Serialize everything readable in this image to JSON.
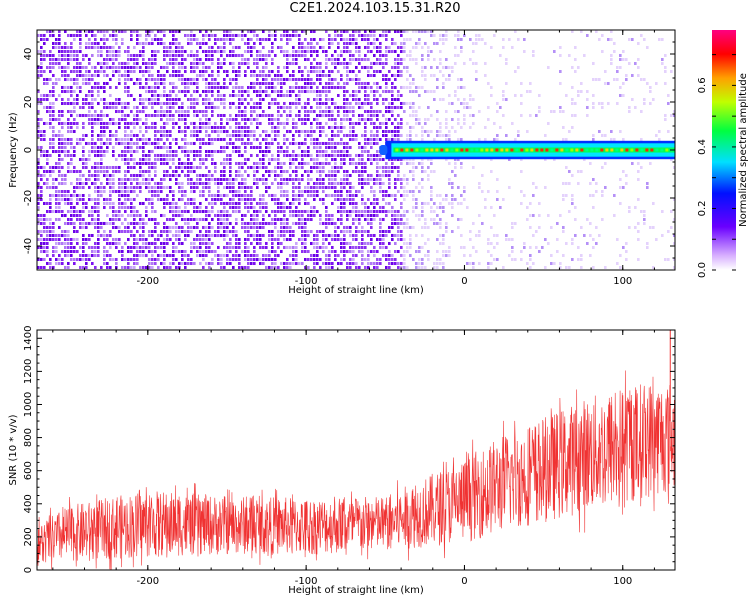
{
  "title": "C2E1.2024.103.15.31.R20",
  "colors": {
    "noise": "#7B1FE8",
    "trace": "#F03232",
    "axis": "#000000"
  },
  "chart_data": [
    {
      "type": "heatmap",
      "xlabel": "Height of straight line (km)",
      "ylabel": "Frequency (Hz)",
      "xlim": [
        -270,
        133
      ],
      "ylim": [
        -50,
        50
      ],
      "x_ticks": [
        -200,
        -100,
        0,
        100
      ],
      "y_ticks": [
        -40,
        -20,
        0,
        20,
        40
      ],
      "colorbar": {
        "label": "Normalized spectral amplitude",
        "range": [
          0,
          0.78
        ],
        "ticks": [
          0.0,
          0.2,
          0.4,
          0.6
        ],
        "colormap": [
          "#ffffff",
          "#5a00ff",
          "#0000ff",
          "#00ffff",
          "#00ff00",
          "#ffff00",
          "#ff0000",
          "#ff0080"
        ]
      },
      "features": {
        "noise_region_x": [
          -270,
          -40
        ],
        "fade_region_x": [
          -40,
          133
        ],
        "signal_band": {
          "x_start": -55,
          "x_end": 133,
          "freq_center": 0,
          "freq_halfwidth": 3,
          "peak_amplitude": 0.7
        }
      }
    },
    {
      "type": "line",
      "xlabel": "Height of straight line (km)",
      "ylabel": "SNR (10 * v/v)",
      "xlim": [
        -270,
        133
      ],
      "ylim": [
        0,
        1450
      ],
      "x_ticks": [
        -200,
        -100,
        0,
        100
      ],
      "y_ticks": [
        0,
        200,
        400,
        600,
        800,
        1000,
        1200,
        1400
      ],
      "series": [
        {
          "color": "#F03232",
          "x": [
            -270,
            -250,
            -200,
            -150,
            -100,
            -50,
            0,
            25,
            50,
            75,
            100,
            120,
            133
          ],
          "lower": [
            0,
            20,
            40,
            60,
            60,
            80,
            120,
            180,
            230,
            280,
            330,
            380,
            420
          ],
          "upper": [
            300,
            420,
            520,
            480,
            470,
            480,
            720,
            880,
            980,
            1100,
            1180,
            1220,
            1200
          ],
          "spike": {
            "x": 130,
            "value": 1450
          }
        }
      ]
    }
  ]
}
